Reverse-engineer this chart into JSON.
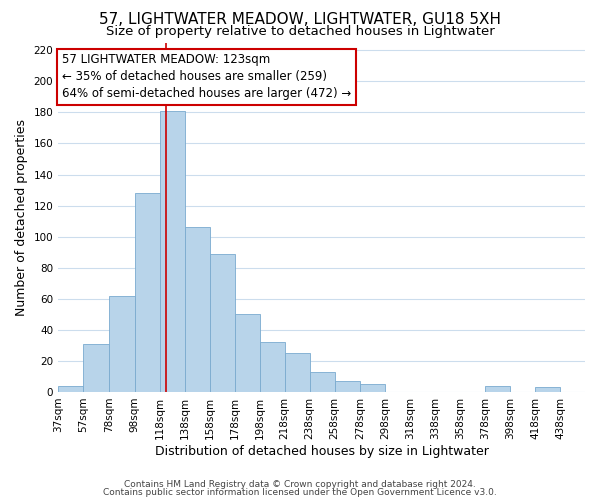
{
  "title": "57, LIGHTWATER MEADOW, LIGHTWATER, GU18 5XH",
  "subtitle": "Size of property relative to detached houses in Lightwater",
  "xlabel": "Distribution of detached houses by size in Lightwater",
  "ylabel": "Number of detached properties",
  "bar_color": "#b8d4ea",
  "bar_edge_color": "#7aaacf",
  "bin_labels": [
    "37sqm",
    "57sqm",
    "78sqm",
    "98sqm",
    "118sqm",
    "138sqm",
    "158sqm",
    "178sqm",
    "198sqm",
    "218sqm",
    "238sqm",
    "258sqm",
    "278sqm",
    "298sqm",
    "318sqm",
    "338sqm",
    "358sqm",
    "378sqm",
    "398sqm",
    "418sqm",
    "438sqm"
  ],
  "bin_edges": [
    37,
    57,
    78,
    98,
    118,
    138,
    158,
    178,
    198,
    218,
    238,
    258,
    278,
    298,
    318,
    338,
    358,
    378,
    398,
    418,
    438
  ],
  "bar_heights": [
    4,
    31,
    62,
    128,
    181,
    106,
    89,
    50,
    32,
    25,
    13,
    7,
    5,
    0,
    0,
    0,
    0,
    4,
    0,
    3,
    0
  ],
  "ylim": [
    0,
    225
  ],
  "yticks": [
    0,
    20,
    40,
    60,
    80,
    100,
    120,
    140,
    160,
    180,
    200,
    220
  ],
  "property_line_x": 123,
  "property_line_color": "#cc0000",
  "annotation_text": "57 LIGHTWATER MEADOW: 123sqm\n← 35% of detached houses are smaller (259)\n64% of semi-detached houses are larger (472) →",
  "annotation_box_color": "#ffffff",
  "annotation_box_edge_color": "#cc0000",
  "footer_line1": "Contains HM Land Registry data © Crown copyright and database right 2024.",
  "footer_line2": "Contains public sector information licensed under the Open Government Licence v3.0.",
  "background_color": "#ffffff",
  "grid_color": "#ccdded",
  "title_fontsize": 11,
  "subtitle_fontsize": 9.5,
  "axis_label_fontsize": 9,
  "tick_fontsize": 7.5,
  "annotation_fontsize": 8.5,
  "footer_fontsize": 6.5
}
